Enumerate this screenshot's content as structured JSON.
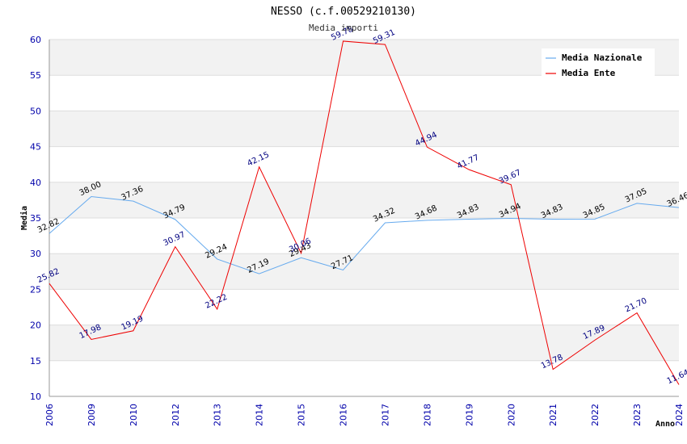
{
  "chart_data": {
    "type": "line",
    "title": "NESSO (c.f.00529210130)",
    "subtitle": "Media importi",
    "ylabel": "Media",
    "xlabel": "Anno",
    "ylim": [
      10,
      60
    ],
    "yticks": [
      10,
      15,
      20,
      25,
      30,
      35,
      40,
      45,
      50,
      55,
      60
    ],
    "categories": [
      "2006",
      "2009",
      "2010",
      "2012",
      "2013",
      "2014",
      "2015",
      "2016",
      "2017",
      "2018",
      "2019",
      "2020",
      "2021",
      "2022",
      "2023",
      "2024"
    ],
    "series": [
      {
        "name": "Media Nazionale",
        "color": "#66aaee",
        "values": [
          32.82,
          38.0,
          37.36,
          34.79,
          29.24,
          27.19,
          29.43,
          27.71,
          34.32,
          34.68,
          34.83,
          34.94,
          34.83,
          34.85,
          37.05,
          36.46
        ],
        "labels": [
          "32.82",
          "38.00",
          "37.36",
          "34.79",
          "29.24",
          "27.19",
          "29.43",
          "27.71",
          "34.32",
          "34.68",
          "34.83",
          "34.94",
          "34.83",
          "34.85",
          "37.05",
          "36.46"
        ]
      },
      {
        "name": "Media Ente",
        "color": "#ee0000",
        "values": [
          25.82,
          17.98,
          19.19,
          30.97,
          22.22,
          42.15,
          30.06,
          59.78,
          59.31,
          44.94,
          41.77,
          39.67,
          13.78,
          17.89,
          21.7,
          11.64
        ],
        "labels": [
          "25.82",
          "17.98",
          "19.19",
          "30.97",
          "22.22",
          "42.15",
          "30.06",
          "59.78",
          "59.31",
          "44.94",
          "41.77",
          "39.67",
          "13.78",
          "17.89",
          "21.70",
          "11.64"
        ]
      }
    ],
    "legend_position": "top-right",
    "grid": true
  }
}
